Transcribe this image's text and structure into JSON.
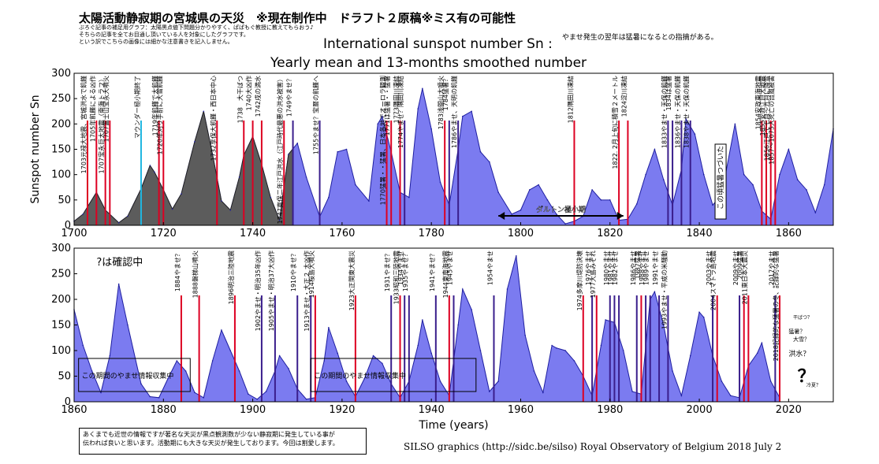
{
  "header": {
    "title": "太陽活動静寂期の宮城県の天災　※現在制作中　ドラフト２原稿※ミス有の可能性",
    "notes": [
      "ぶろぐ記事の補足用グラフ：太陽黒点値下問題分かりやすく、ぱぱもぐ教授に教えてもらおう♪",
      "そちらの記事を全てお目通し頂いている人を対象にしたグラフです。",
      "という訳でこちらの画像には細かな注意書きを記入しません。"
    ],
    "chart_title": "International sunspot number Sn :",
    "chart_subtitle": "Yearly mean and 13-months smoothed number",
    "top_note": "やませ発生の翌年は猛暑になるとの指摘がある。"
  },
  "footer": {
    "note_lines": [
      "あくまでも近世の情報ですが著名な天災が黒点観測数が少ない静寂期に発生している事が",
      "伝われば良いと思います。活動期にも大きな天災が発生しております。今回は割愛します。"
    ],
    "credit": "SILSO graphics (http://sidc.be/silso)  Royal Observatory of Belgium  2018 July 2"
  },
  "chart_data": [
    {
      "type": "area",
      "xlabel": "",
      "ylabel": "Sunspot number Sn",
      "xlim": [
        1700,
        1870
      ],
      "ylim": [
        0,
        300
      ],
      "xticks": [
        1700,
        1720,
        1740,
        1760,
        1780,
        1800,
        1820,
        1840,
        1860
      ],
      "yticks": [
        0,
        50,
        100,
        150,
        200,
        250,
        300
      ],
      "grid": false,
      "colors": {
        "gray_fill": "#5c5c5c",
        "blue_fill": "#7b7bf0",
        "blue_line": "#1e1ea0",
        "red_marker": "#dd0022",
        "purple_marker": "#3a1e8c",
        "cyan_marker": "#20b6e0"
      },
      "x": [
        1700,
        1702,
        1705,
        1707,
        1710,
        1712,
        1715,
        1717,
        1718,
        1720,
        1722,
        1724,
        1727,
        1729,
        1731,
        1733,
        1735,
        1737,
        1738,
        1740,
        1742,
        1744,
        1746,
        1748,
        1750,
        1752,
        1755,
        1757,
        1759,
        1761,
        1763,
        1766,
        1768,
        1769,
        1771,
        1773,
        1775,
        1777,
        1778,
        1780,
        1782,
        1784,
        1786,
        1787,
        1789,
        1791,
        1793,
        1795,
        1798,
        1800,
        1802,
        1804,
        1806,
        1808,
        1810,
        1812,
        1814,
        1816,
        1818,
        1820,
        1822,
        1824,
        1826,
        1828,
        1830,
        1832,
        1834,
        1836,
        1837,
        1839,
        1841,
        1843,
        1845,
        1848,
        1850,
        1852,
        1854,
        1856,
        1858,
        1860,
        1862,
        1864,
        1866,
        1868,
        1870
      ],
      "y": [
        8,
        22,
        65,
        30,
        5,
        18,
        72,
        118,
        105,
        70,
        32,
        62,
        165,
        225,
        140,
        48,
        30,
        95,
        138,
        175,
        120,
        55,
        10,
        140,
        162,
        95,
        17,
        55,
        145,
        150,
        80,
        48,
        200,
        215,
        145,
        65,
        55,
        230,
        270,
        190,
        85,
        40,
        150,
        215,
        225,
        145,
        125,
        65,
        22,
        30,
        70,
        80,
        50,
        22,
        3,
        8,
        18,
        70,
        50,
        50,
        10,
        12,
        42,
        100,
        150,
        90,
        40,
        110,
        210,
        180,
        100,
        40,
        60,
        200,
        100,
        80,
        28,
        12,
        100,
        150,
        90,
        70,
        25,
        80,
        190
      ],
      "annotations": [
        {
          "year": 1703,
          "text": "1703元禄大地震、宮城洪水で飢饉",
          "color": "red"
        },
        {
          "year": 1705,
          "text": "1705年飢饉による凶作",
          "color": "red"
        },
        {
          "year": 1707,
          "text": "1707宝永巨大地震（南海トラフ）",
          "color": "red"
        },
        {
          "year": 1708,
          "text": "1707富士山宝永大噴火",
          "color": "red"
        },
        {
          "year": 1715,
          "text": "マウンダー極小期終了",
          "color": "cyan"
        },
        {
          "year": 1719,
          "text": "1719年飢饉で大飢饉",
          "color": "red"
        },
        {
          "year": 1720,
          "text": "1720年刈り手前に大雪飢饉",
          "color": "red"
        },
        {
          "year": 1732,
          "text": "1732享保大飢饉・西日本中心",
          "color": "red"
        },
        {
          "year": 1738,
          "text": "1738　大干ばつ",
          "color": "red"
        },
        {
          "year": 1740,
          "text": "1740大凶作",
          "color": "red"
        },
        {
          "year": 1742,
          "text": "1742戌の満水",
          "color": "red"
        },
        {
          "year": 1747,
          "text": "1747寛保二年江戸洪水（江戸時代最悪の洪水被害）",
          "color": "red"
        },
        {
          "year": 1749,
          "text": "1749やませ？",
          "color": "purple"
        },
        {
          "year": 1755,
          "text": "1755やませ？宝暦の飢饉へ",
          "color": "purple"
        },
        {
          "year": 1770,
          "text": "1770猛暑・・猛暑、日本各地でオーロラ観測",
          "color": "red"
        },
        {
          "year": 1771,
          "text": "1771は猛暑・・猛暑",
          "color": "red"
        },
        {
          "year": 1773,
          "text": "1773隅田川凍結",
          "color": "red"
        },
        {
          "year": 1774,
          "text": "1774やませ？隅田川凍結",
          "color": "purple"
        },
        {
          "year": 1783,
          "text": "1783浅間山大噴火",
          "color": "red"
        },
        {
          "year": 1784,
          "text": "1784猛暑？",
          "color": "purple"
        },
        {
          "year": 1786,
          "text": "1786やませ、天明の飢饉",
          "color": "purple"
        },
        {
          "year": 1812,
          "text": "1812隅田川凍結",
          "color": "red"
        },
        {
          "year": 1822,
          "text": "1822. 2月上旬に積雪２メートル",
          "color": "red"
        },
        {
          "year": 1824,
          "text": "1824淀川凍結",
          "color": "red"
        },
        {
          "year": 1833,
          "text": "1833やませ・天保の飢饉",
          "color": "purple"
        },
        {
          "year": 1834,
          "text": "1834は猛暑",
          "color": "purple"
        },
        {
          "year": 1836,
          "text": "1836やませ・天保の飢饉",
          "color": "purple"
        },
        {
          "year": 1838,
          "text": "1838やませ・天保の飢饉",
          "color": "purple"
        },
        {
          "year": 1854,
          "text": "1854安政東海地震",
          "color": "red"
        },
        {
          "year": 1855,
          "text": "1855安政江戸大地震",
          "color": "red"
        },
        {
          "year": 1856,
          "text": "1856江戸で七月～九月に降雪",
          "color": "red"
        },
        {
          "year": 1857,
          "text": "1857～1075人死亡の台風被害",
          "color": "red"
        }
      ],
      "labels": {
        "dalton": "ダルトン極小期",
        "box": "この頃猛暑つづいた"
      },
      "dalton_range": [
        1795,
        1823
      ]
    },
    {
      "type": "area",
      "xlabel": "Time (years)",
      "ylabel": "",
      "xlim": [
        1860,
        2030
      ],
      "ylim": [
        0,
        300
      ],
      "xticks": [
        1860,
        1880,
        1900,
        1920,
        1940,
        1960,
        1980,
        2000,
        2020
      ],
      "yticks": [
        0,
        50,
        100,
        150,
        200,
        250,
        300
      ],
      "grid": false,
      "x": [
        1860,
        1862,
        1864,
        1866,
        1868,
        1870,
        1872,
        1875,
        1877,
        1879,
        1881,
        1883,
        1885,
        1887,
        1889,
        1891,
        1893,
        1895,
        1897,
        1899,
        1901,
        1903,
        1905,
        1906,
        1908,
        1910,
        1912,
        1914,
        1916,
        1917,
        1919,
        1921,
        1923,
        1925,
        1927,
        1929,
        1931,
        1933,
        1935,
        1937,
        1938,
        1940,
        1942,
        1944,
        1946,
        1947,
        1949,
        1951,
        1953,
        1955,
        1957,
        1959,
        1961,
        1963,
        1965,
        1967,
        1968,
        1970,
        1972,
        1974,
        1976,
        1978,
        1979,
        1981,
        1983,
        1985,
        1987,
        1989,
        1990,
        1992,
        1994,
        1996,
        1998,
        2000,
        2001,
        2003,
        2005,
        2007,
        2009,
        2011,
        2013,
        2014,
        2016,
        2018
      ],
      "y": [
        180,
        110,
        60,
        18,
        90,
        230,
        150,
        35,
        10,
        8,
        45,
        80,
        60,
        18,
        8,
        80,
        140,
        100,
        60,
        15,
        5,
        20,
        60,
        90,
        65,
        25,
        5,
        8,
        80,
        145,
        95,
        40,
        10,
        45,
        90,
        75,
        35,
        8,
        40,
        110,
        160,
        95,
        40,
        12,
        150,
        220,
        180,
        100,
        20,
        40,
        220,
        285,
        130,
        60,
        18,
        110,
        105,
        100,
        80,
        50,
        12,
        110,
        160,
        155,
        100,
        20,
        15,
        200,
        215,
        150,
        60,
        12,
        90,
        175,
        165,
        90,
        40,
        12,
        8,
        70,
        95,
        115,
        40,
        8
      ],
      "annotations": [
        {
          "year": 1884,
          "text": "1884やませ？",
          "color": "red"
        },
        {
          "year": 1888,
          "text": "1888磐梯山噴火",
          "color": "red"
        },
        {
          "year": 1896,
          "text": "1896明治三陸地震",
          "color": "red"
        },
        {
          "year": 1902,
          "text": "1902やませ・明治35年凶作",
          "color": "purple"
        },
        {
          "year": 1905,
          "text": "1905やませ・明治37大凶作",
          "color": "purple"
        },
        {
          "year": 1910,
          "text": "1910やませ？",
          "color": "purple"
        },
        {
          "year": 1913,
          "text": "1913やませ・大正２ 大凶作",
          "color": "purple"
        },
        {
          "year": 1914,
          "text": "1914桜島大噴火",
          "color": "red"
        },
        {
          "year": 1923,
          "text": "1923大正関東大震災",
          "color": "red"
        },
        {
          "year": 1931,
          "text": "1931やませ？",
          "color": "purple"
        },
        {
          "year": 1933,
          "text": "1933昭和三陸地震",
          "color": "red"
        },
        {
          "year": 1934,
          "text": "1934やませ",
          "color": "purple"
        },
        {
          "year": 1935,
          "text": "1935やませ？",
          "color": "purple"
        },
        {
          "year": 1941,
          "text": "1941やませ？",
          "color": "purple"
        },
        {
          "year": 1944,
          "text": "1944東南海地震",
          "color": "red"
        },
        {
          "year": 1945,
          "text": "1945やませ",
          "color": "purple"
        },
        {
          "year": 1954,
          "text": "1954やませ",
          "color": "purple"
        },
        {
          "year": 1974,
          "text": "1974多摩川堤防決壊",
          "color": "red"
        },
        {
          "year": 1976,
          "text": "1976やませ",
          "color": "purple"
        },
        {
          "year": 1977,
          "text": "1977大島みぞれ",
          "color": "red"
        },
        {
          "year": 1980,
          "text": "1980やませ",
          "color": "purple"
        },
        {
          "year": 1981,
          "text": "1981やませ",
          "color": "purple"
        },
        {
          "year": 1982,
          "text": "1982やませ",
          "color": "purple"
        },
        {
          "year": 1986,
          "text": "1986やませ",
          "color": "purple"
        },
        {
          "year": 1987,
          "text": "1987猛暑",
          "color": "red"
        },
        {
          "year": 1988,
          "text": "1988やませ",
          "color": "purple"
        },
        {
          "year": 1989,
          "text": "1989やませ",
          "color": "purple"
        },
        {
          "year": 1991,
          "text": "1991やませ",
          "color": "purple"
        },
        {
          "year": 1993,
          "text": "1993やませ・平成の米騒動",
          "color": "purple"
        },
        {
          "year": 2003,
          "text": "2003やませ",
          "color": "purple"
        },
        {
          "year": 2004,
          "text": "2004スマトラ島地震",
          "color": "red"
        },
        {
          "year": 2009,
          "text": "2009やませ",
          "color": "purple"
        },
        {
          "year": 2010,
          "text": "2009猛暑",
          "color": "red"
        },
        {
          "year": 2011,
          "text": "2011東日本大震災",
          "color": "red"
        },
        {
          "year": 2017,
          "text": "2017やませ",
          "color": "purple"
        },
        {
          "year": 2018,
          "text": "2018記録的な猛暑の冬、記録的な猛暑",
          "color": "red"
        }
      ],
      "labels": {
        "checking": "?は確認中",
        "box1": "この期間のやませ情報収集中",
        "box2": "この期間のやませ情報収集中",
        "side_notes": [
          "干ばつ？",
          "猛暑？",
          "大雪？",
          "洪水？",
          "？",
          "冷夏？"
        ]
      }
    }
  ]
}
